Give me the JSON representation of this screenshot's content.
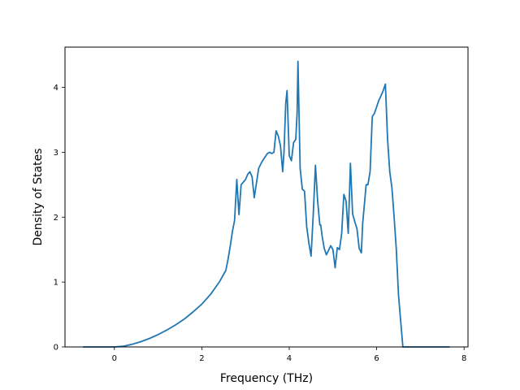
{
  "chart_data": {
    "type": "line",
    "title": "",
    "xlabel": "Frequency (THz)",
    "ylabel": "Density of States",
    "xlim": [
      -1.13,
      8.09
    ],
    "ylim": [
      0,
      4.62
    ],
    "xticks": [
      0,
      2,
      4,
      6,
      8
    ],
    "yticks": [
      0,
      1,
      2,
      3,
      4
    ],
    "grid": false,
    "series": [
      {
        "color": "#1f77b4",
        "x": [
          -0.72,
          0.0,
          0.2,
          0.4,
          0.6,
          0.8,
          1.0,
          1.2,
          1.4,
          1.6,
          1.8,
          2.0,
          2.2,
          2.4,
          2.55,
          2.6,
          2.65,
          2.7,
          2.75,
          2.8,
          2.85,
          2.9,
          3.0,
          3.05,
          3.1,
          3.15,
          3.2,
          3.3,
          3.35,
          3.4,
          3.5,
          3.55,
          3.6,
          3.65,
          3.7,
          3.75,
          3.8,
          3.85,
          3.88,
          3.92,
          3.95,
          4.0,
          4.05,
          4.1,
          4.15,
          4.18,
          4.2,
          4.25,
          4.3,
          4.35,
          4.4,
          4.45,
          4.5,
          4.55,
          4.6,
          4.65,
          4.7,
          4.72,
          4.75,
          4.8,
          4.85,
          4.9,
          4.95,
          5.0,
          5.05,
          5.1,
          5.15,
          5.2,
          5.25,
          5.3,
          5.35,
          5.4,
          5.45,
          5.5,
          5.55,
          5.6,
          5.65,
          5.68,
          5.72,
          5.76,
          5.8,
          5.85,
          5.9,
          5.95,
          6.0,
          6.05,
          6.1,
          6.15,
          6.2,
          6.25,
          6.3,
          6.35,
          6.4,
          6.45,
          6.5,
          6.55,
          6.6,
          6.7,
          6.8,
          6.9,
          6.95,
          7.0,
          7.3,
          7.67
        ],
        "y": [
          0,
          0,
          0.01,
          0.04,
          0.08,
          0.13,
          0.19,
          0.26,
          0.34,
          0.43,
          0.54,
          0.66,
          0.81,
          1.0,
          1.18,
          1.35,
          1.55,
          1.78,
          1.95,
          2.58,
          2.04,
          2.5,
          2.58,
          2.66,
          2.7,
          2.62,
          2.3,
          2.75,
          2.82,
          2.88,
          2.98,
          3.0,
          2.98,
          3.0,
          3.33,
          3.25,
          3.1,
          2.7,
          3.0,
          3.75,
          3.95,
          2.95,
          2.87,
          3.15,
          3.2,
          3.6,
          4.4,
          2.75,
          2.43,
          2.4,
          1.85,
          1.6,
          1.4,
          2.05,
          2.8,
          2.25,
          1.88,
          1.88,
          1.72,
          1.52,
          1.42,
          1.49,
          1.56,
          1.5,
          1.22,
          1.53,
          1.5,
          1.75,
          2.35,
          2.25,
          1.75,
          2.83,
          2.05,
          1.93,
          1.82,
          1.52,
          1.45,
          1.9,
          2.2,
          2.5,
          2.5,
          2.7,
          3.55,
          3.6,
          3.7,
          3.8,
          3.87,
          3.95,
          4.05,
          3.2,
          2.7,
          2.45,
          2.0,
          1.5,
          0.8,
          0.4,
          0.0,
          0.0,
          0.0,
          0.0,
          0.0,
          0.0,
          0.0,
          0.0
        ]
      }
    ]
  }
}
